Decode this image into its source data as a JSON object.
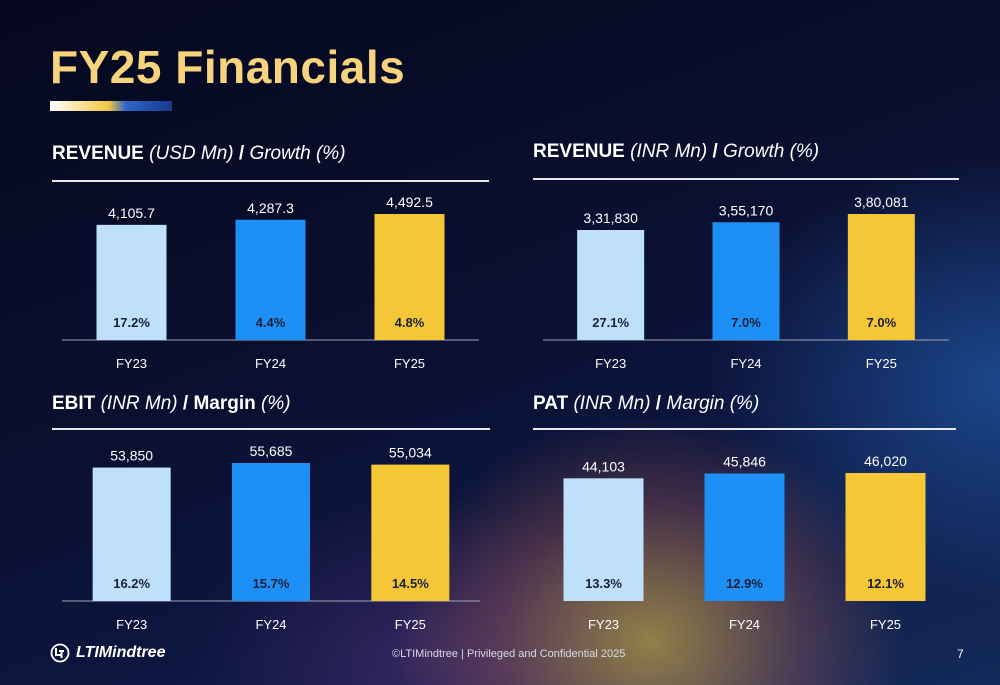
{
  "title": "FY25 Financials",
  "footer": {
    "logo_text": "LTIMindtree",
    "copyright": "©LTIMindtree | Privileged and Confidential 2025",
    "page_number": "7"
  },
  "colors": {
    "bar_fy23": "#bfe0fb",
    "bar_fy24": "#1e90f5",
    "bar_fy25": "#f5c736",
    "title": "#f6d37c"
  },
  "panels": [
    {
      "metric": "REVENUE",
      "unit": "(USD Mn)",
      "sep": " / ",
      "metric2": "Growth",
      "unit2": "(%)"
    },
    {
      "metric": "REVENUE",
      "unit": "(INR Mn)",
      "sep": " / ",
      "metric2": "Growth",
      "unit2": "(%)"
    },
    {
      "metric": "EBIT",
      "unit": "(INR Mn)",
      "sep": " / ",
      "metric2": "Margin",
      "unit2": "(%)"
    },
    {
      "metric": "PAT",
      "unit": "(INR Mn)",
      "sep": " / ",
      "metric2": "Margin",
      "unit2": "(%)"
    }
  ],
  "chart_data": [
    {
      "type": "bar",
      "title": "REVENUE (USD Mn) / Growth (%)",
      "categories": [
        "FY23",
        "FY24",
        "FY25"
      ],
      "values": [
        4105.7,
        4287.3,
        4492.5
      ],
      "value_labels": [
        "4,105.7",
        "4,287.3",
        "4,492.5"
      ],
      "secondary_labels": [
        "17.2%",
        "4.4%",
        "4.8%"
      ],
      "ylim": [
        0,
        4492.5
      ],
      "grid": false
    },
    {
      "type": "bar",
      "title": "REVENUE (INR Mn) / Growth (%)",
      "categories": [
        "FY23",
        "FY24",
        "FY25"
      ],
      "values": [
        331830,
        355170,
        380081
      ],
      "value_labels": [
        "3,31,830",
        "3,55,170",
        "3,80,081"
      ],
      "secondary_labels": [
        "27.1%",
        "7.0%",
        "7.0%"
      ],
      "ylim": [
        0,
        380081
      ],
      "grid": false
    },
    {
      "type": "bar",
      "title": "EBIT (INR Mn) / Margin (%)",
      "categories": [
        "FY23",
        "FY24",
        "FY25"
      ],
      "values": [
        53850,
        55685,
        55034
      ],
      "value_labels": [
        "53,850",
        "55,685",
        "55,034"
      ],
      "secondary_labels": [
        "16.2%",
        "15.7%",
        "14.5%"
      ],
      "ylim": [
        0,
        55685
      ],
      "grid": false
    },
    {
      "type": "bar",
      "title": "PAT (INR Mn) / Margin (%)",
      "categories": [
        "FY23",
        "FY24",
        "FY25"
      ],
      "values": [
        44103,
        45846,
        46020
      ],
      "value_labels": [
        "44,103",
        "45,846",
        "46,020"
      ],
      "secondary_labels": [
        "13.3%",
        "12.9%",
        "12.1%"
      ],
      "ylim": [
        0,
        46020
      ],
      "grid": false
    }
  ]
}
